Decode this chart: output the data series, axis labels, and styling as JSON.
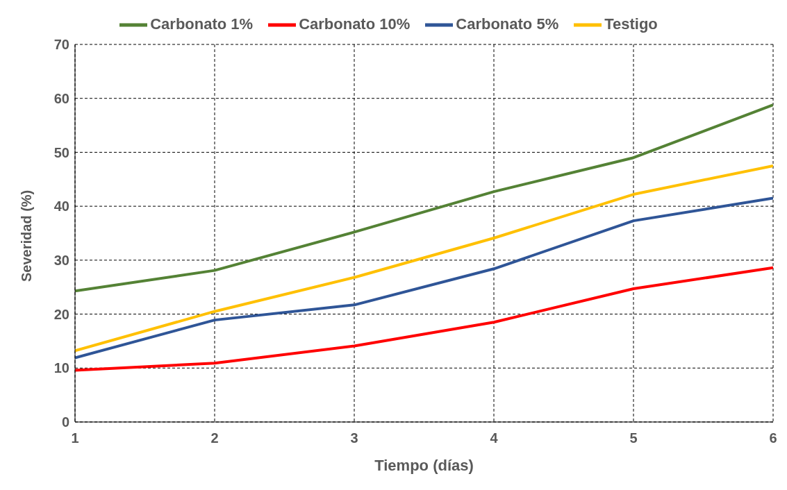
{
  "chart_data": {
    "type": "line",
    "xlabel": "Tiempo (días)",
    "ylabel": "Severidad (%)",
    "x": [
      1,
      2,
      3,
      4,
      5,
      6
    ],
    "xlim": [
      1,
      6
    ],
    "xticks": [
      1,
      2,
      3,
      4,
      5,
      6
    ],
    "ylim": [
      0,
      70
    ],
    "yticks": [
      0,
      10,
      20,
      30,
      40,
      50,
      60,
      70
    ],
    "grid": true,
    "legend": "top",
    "marker": "none",
    "line_style": "solid",
    "series": [
      {
        "name": "Carbonato 1%",
        "color": "#548235",
        "values": [
          24.3,
          28.1,
          35.2,
          42.7,
          49.0,
          58.8
        ]
      },
      {
        "name": "Carbonato 10%",
        "color": "#ff0000",
        "values": [
          9.6,
          10.9,
          14.1,
          18.5,
          24.7,
          28.6
        ]
      },
      {
        "name": "Carbonato 5%",
        "color": "#2f5597",
        "values": [
          11.9,
          18.9,
          21.7,
          28.4,
          37.3,
          41.5
        ]
      },
      {
        "name": "Testigo",
        "color": "#ffc000",
        "values": [
          13.2,
          20.5,
          26.8,
          34.1,
          42.2,
          47.5
        ]
      }
    ]
  }
}
